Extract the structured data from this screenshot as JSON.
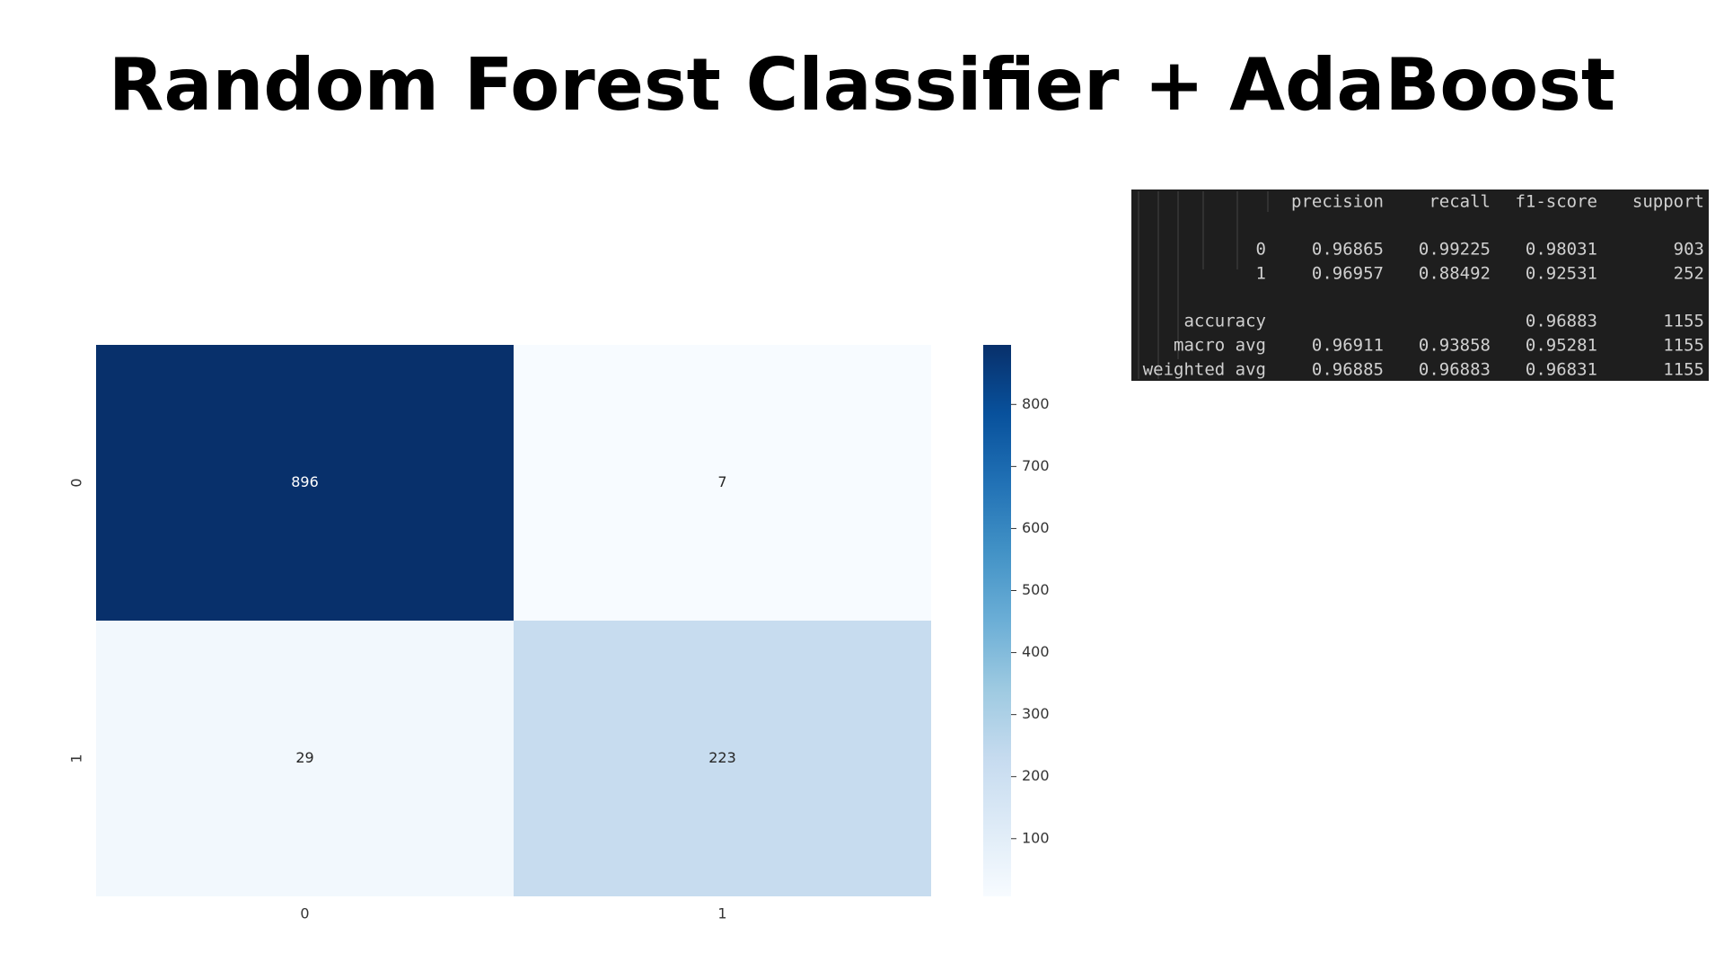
{
  "title": "Random Forest Classifier + AdaBoost",
  "chart_data": {
    "type": "heatmap",
    "x_categories": [
      "0",
      "1"
    ],
    "y_categories": [
      "0",
      "1"
    ],
    "values": [
      [
        896,
        7
      ],
      [
        29,
        223
      ]
    ],
    "colormap": "Blues",
    "clim": [
      7,
      896
    ],
    "cticks": [
      100,
      200,
      300,
      400,
      500,
      600,
      700,
      800
    ]
  },
  "table": {
    "columns": [
      "precision",
      "recall",
      "f1-score",
      "support"
    ],
    "rows": [
      {
        "label": "0",
        "cells": [
          0.96865,
          0.99225,
          0.98031,
          903
        ]
      },
      {
        "label": "1",
        "cells": [
          0.96957,
          0.88492,
          0.92531,
          252
        ]
      },
      {
        "label": "accuracy",
        "cells": [
          null,
          null,
          0.96883,
          1155
        ]
      },
      {
        "label": "macro avg",
        "cells": [
          0.96911,
          0.93858,
          0.95281,
          1155
        ]
      },
      {
        "label": "weighted avg",
        "cells": [
          0.96885,
          0.96883,
          0.96831,
          1155
        ]
      }
    ]
  }
}
